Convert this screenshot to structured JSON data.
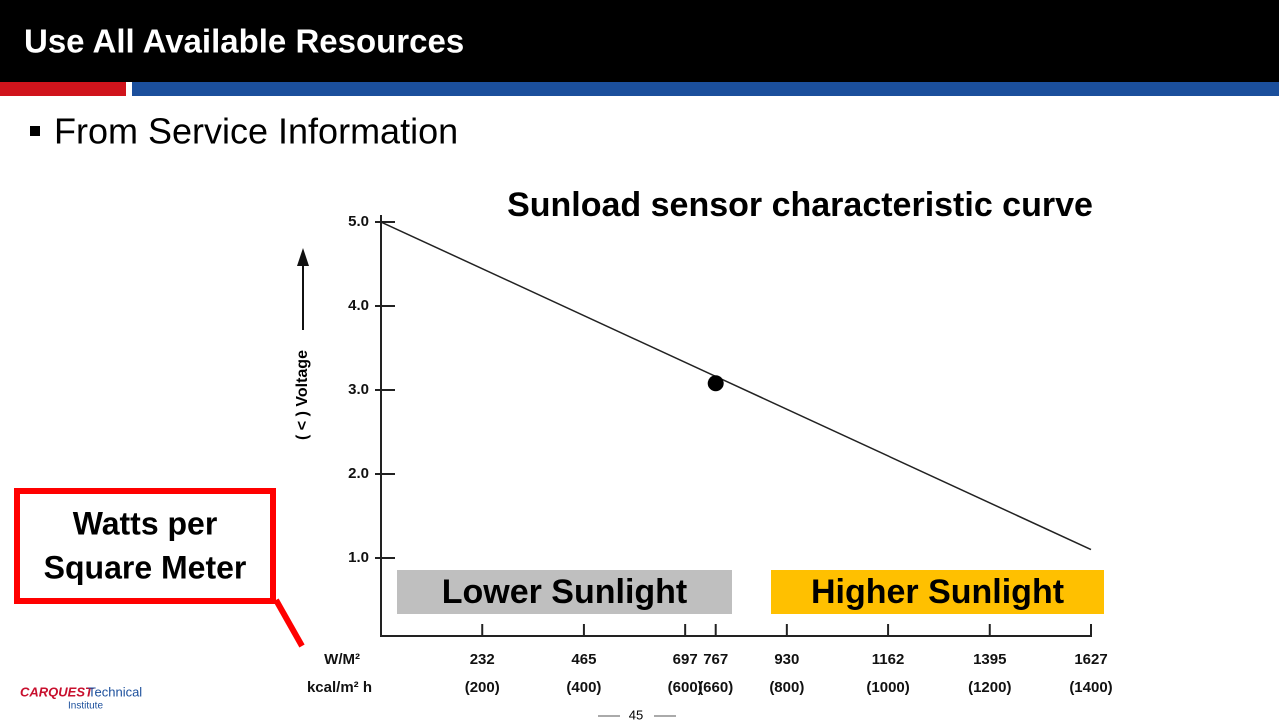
{
  "slide": {
    "title": "Use All Available Resources",
    "bullet": "From Service Information",
    "callout": [
      "Watts per",
      "Square Meter"
    ],
    "page": "45",
    "logo": {
      "brand": "CARQUEST",
      "text": "Technical",
      "sub": "Institute"
    }
  },
  "chart_data": {
    "type": "line",
    "title": "Sunload sensor characteristic curve",
    "y_label": "( < ) Voltage",
    "x_unit_labels": [
      "W/M²",
      "kcal/m² h"
    ],
    "series": [
      {
        "name": "Sunload sensor",
        "color": "#222222",
        "x": [
          0,
          1627
        ],
        "values": [
          5.0,
          1.1
        ]
      }
    ],
    "point": {
      "x": 767,
      "y": 3.08
    },
    "xlim": [
      0,
      1627
    ],
    "xticks": [
      232,
      465,
      697,
      767,
      930,
      1162,
      1395,
      1627
    ],
    "xtick_sublabels": [
      "(200)",
      "(400)",
      "(600)",
      "(660)",
      "(800)",
      "(1000)",
      "(1200)",
      "(1400)"
    ],
    "ylim": [
      0,
      5
    ],
    "yticks": [
      {
        "value": 1,
        "label": "1.0"
      },
      {
        "value": 2,
        "label": "2.0"
      },
      {
        "value": 3,
        "label": "3.0"
      },
      {
        "value": 4,
        "label": "4.0"
      },
      {
        "value": 5,
        "label": "5.0"
      }
    ],
    "annotations": [
      {
        "text": "Lower Sunlight",
        "color": "#bfbfbf"
      },
      {
        "text": "Higher Sunlight",
        "color": "#ffc000"
      }
    ]
  }
}
